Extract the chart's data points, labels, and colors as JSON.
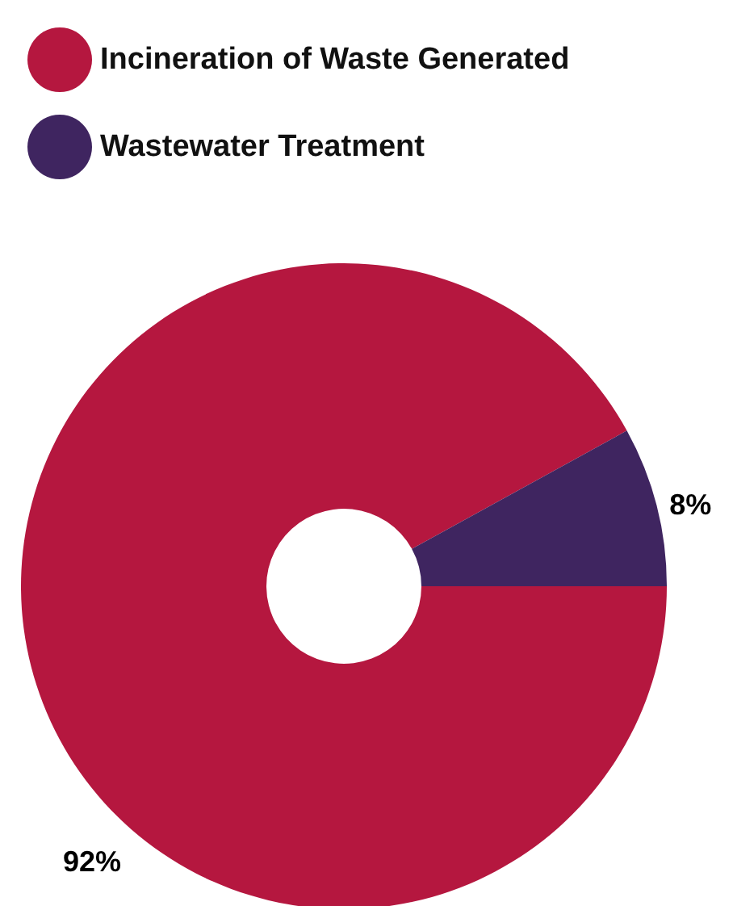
{
  "chart_data": {
    "type": "donut",
    "categories": [
      "Incineration of Waste Generated",
      "Wastewater Treatment"
    ],
    "values": [
      92,
      8
    ],
    "colors": [
      "#b5173f",
      "#3f2560"
    ],
    "value_labels": [
      "92%",
      "8%"
    ],
    "legend": "top left"
  }
}
